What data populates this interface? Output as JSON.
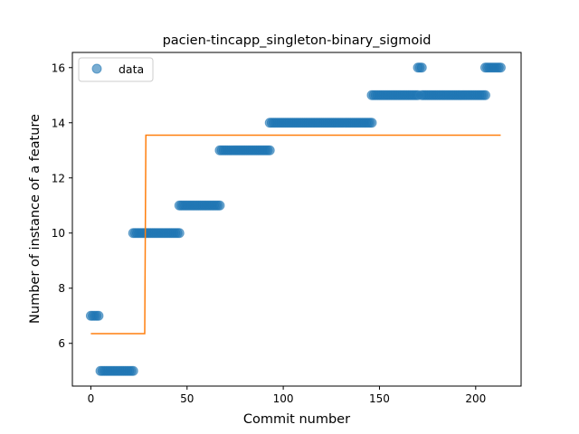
{
  "chart_data": {
    "type": "scatter",
    "title": "pacien-tincapp_singleton-binary_sigmoid",
    "xlabel": "Commit number",
    "ylabel": "Number of instance of a feature",
    "xlim": [
      -9.6,
      223.6
    ],
    "ylim": [
      4.45,
      16.55
    ],
    "xticks": [
      0,
      50,
      100,
      150,
      200
    ],
    "yticks": [
      6,
      8,
      10,
      12,
      14,
      16
    ],
    "grid": false,
    "legend": {
      "position": "top-left",
      "entries": [
        "data"
      ]
    },
    "colors": {
      "scatter": "#1f77b4",
      "fit": "#ff7f0e"
    },
    "series": [
      {
        "name": "data",
        "kind": "scatter",
        "runs": [
          {
            "x_start": 0,
            "x_end": 4,
            "y": 7
          },
          {
            "x_start": 5,
            "x_end": 22,
            "y": 5
          },
          {
            "x_start": 22,
            "x_end": 46,
            "y": 10
          },
          {
            "x_start": 46,
            "x_end": 67,
            "y": 11
          },
          {
            "x_start": 67,
            "x_end": 93,
            "y": 13
          },
          {
            "x_start": 93,
            "x_end": 146,
            "y": 14
          },
          {
            "x_start": 146,
            "x_end": 170,
            "y": 15
          },
          {
            "x_start": 170,
            "x_end": 172,
            "y": 16
          },
          {
            "x_start": 172,
            "x_end": 205,
            "y": 15
          },
          {
            "x_start": 205,
            "x_end": 213,
            "y": 16
          }
        ]
      },
      {
        "kind": "line",
        "points": [
          {
            "x": 0,
            "y": 6.35
          },
          {
            "x": 28,
            "y": 6.35
          },
          {
            "x": 28.6,
            "y": 13.55
          },
          {
            "x": 213,
            "y": 13.55
          }
        ]
      }
    ]
  }
}
